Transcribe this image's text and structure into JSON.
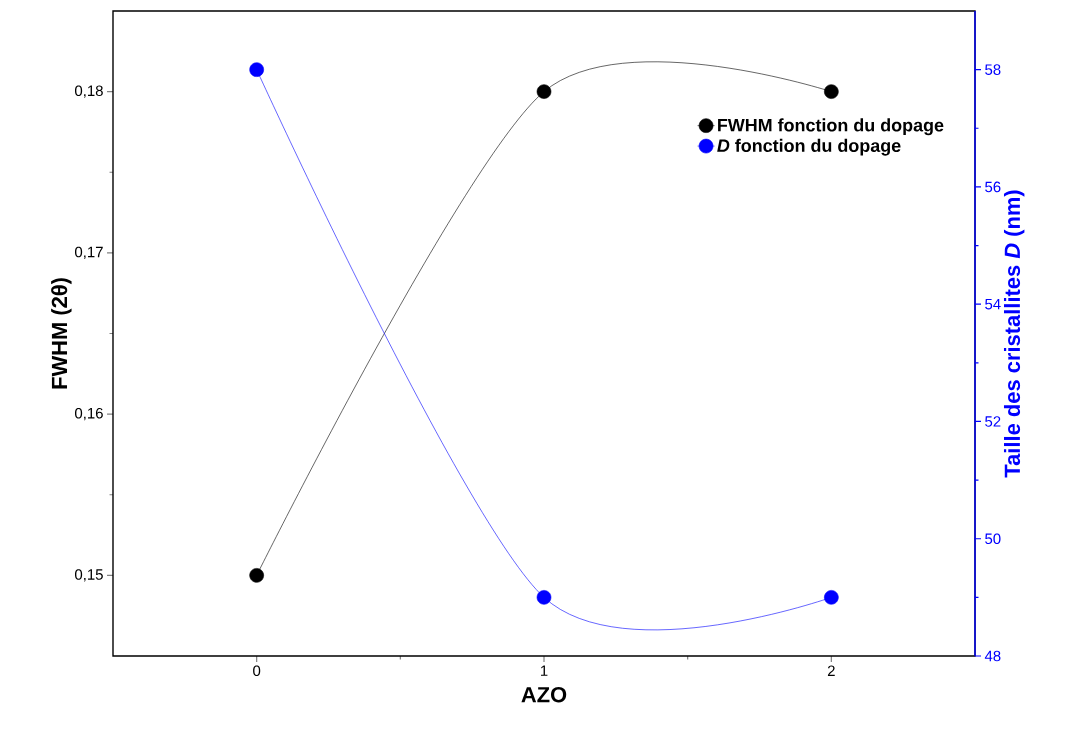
{
  "chart_data": {
    "type": "line",
    "xlabel": "AZO",
    "ylabel": "FWHM (2θ)",
    "y2label": "Taille des cristallites *D* (nm)",
    "x": [
      0,
      1,
      2
    ],
    "xlim": [
      -0.5,
      2.5
    ],
    "xticks": [
      0,
      1,
      2
    ],
    "ylim": [
      0.145,
      0.185
    ],
    "yticks": [
      {
        "value": 0.15,
        "label": "0,15"
      },
      {
        "value": 0.16,
        "label": "0,16"
      },
      {
        "value": 0.17,
        "label": "0,17"
      },
      {
        "value": 0.18,
        "label": "0,18"
      }
    ],
    "y2lim": [
      48,
      59
    ],
    "y2ticks": [
      48,
      50,
      52,
      54,
      56,
      58
    ],
    "series": [
      {
        "name": "FWHM fonction du dopage",
        "color": "#000000",
        "values": [
          0.15,
          0.18,
          0.18
        ]
      },
      {
        "name": "*D* fonction du dopage",
        "color": "#0000ff",
        "axis": "y2",
        "values": [
          58,
          49,
          49
        ]
      }
    ],
    "marker": "circle",
    "line_style": "solid",
    "legend": "top right",
    "grid": false
  }
}
